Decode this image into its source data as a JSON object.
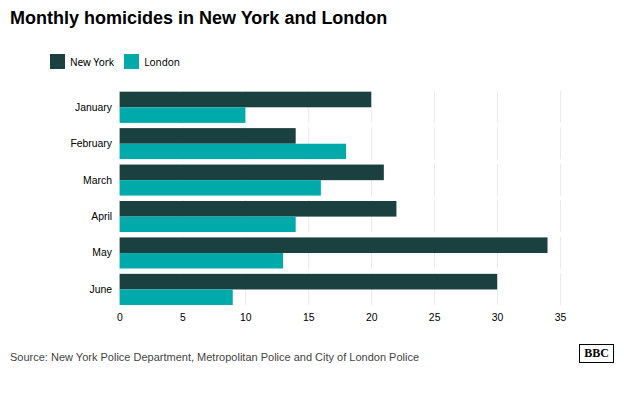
{
  "chart_data": {
    "type": "bar",
    "orientation": "horizontal",
    "title": "Monthly homicides in New York and London",
    "categories": [
      "January",
      "February",
      "March",
      "April",
      "May",
      "June"
    ],
    "series": [
      {
        "name": "New York",
        "color": "#1a4040",
        "values": [
          20,
          14,
          21,
          22,
          34,
          30
        ]
      },
      {
        "name": "London",
        "color": "#00aaaa",
        "values": [
          10,
          18,
          16,
          14,
          13,
          9
        ]
      }
    ],
    "xlim": [
      0,
      35
    ],
    "xticks": [
      0,
      5,
      10,
      15,
      20,
      25,
      30,
      35
    ],
    "grid": true,
    "legend": "top",
    "annotations": [
      "Source: New York Police Department, Metropolitan Police and City of London Police",
      "BBC"
    ]
  }
}
